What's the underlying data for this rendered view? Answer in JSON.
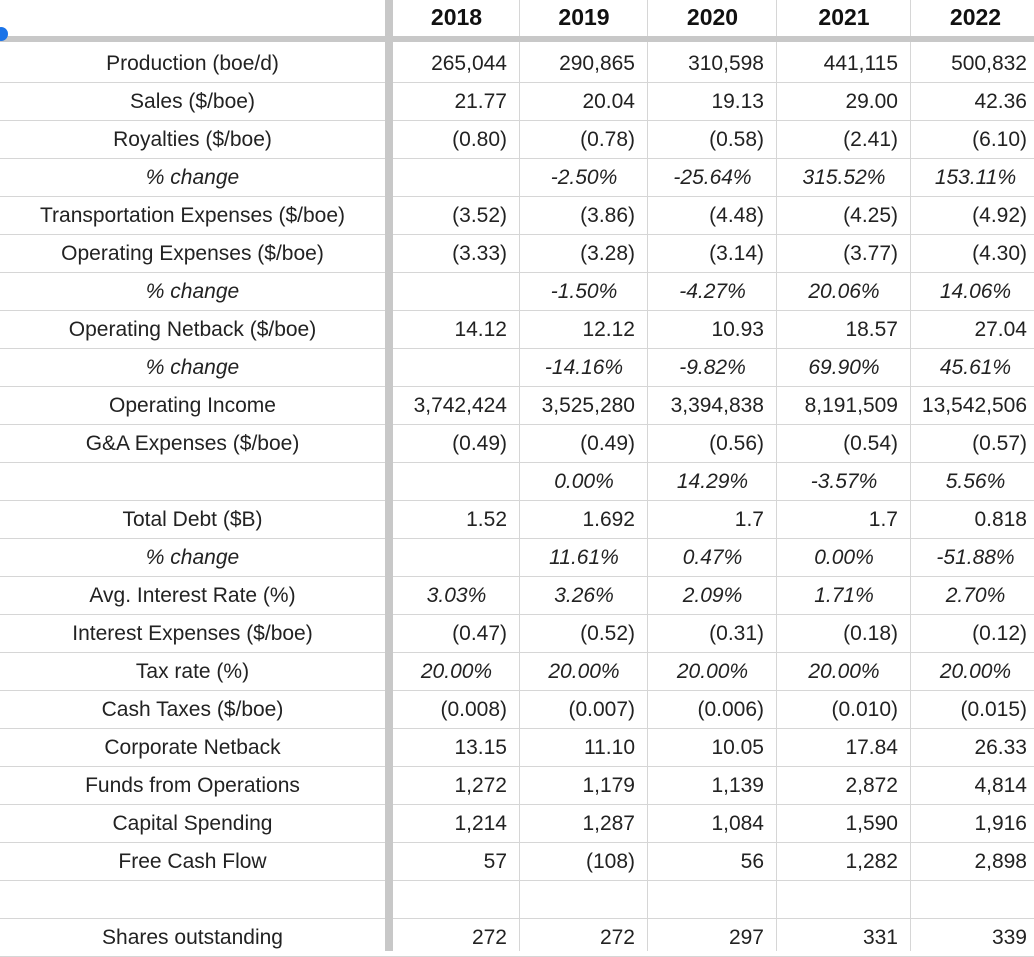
{
  "years": [
    "2018",
    "2019",
    "2020",
    "2021",
    "2022"
  ],
  "rows": [
    {
      "label": "Production (boe/d)",
      "italic": false,
      "kind": "num",
      "values": [
        "265,044",
        "290,865",
        "310,598",
        "441,115",
        "500,832"
      ]
    },
    {
      "label": "Sales ($/boe)",
      "italic": false,
      "kind": "num",
      "values": [
        "21.77",
        "20.04",
        "19.13",
        "29.00",
        "42.36"
      ]
    },
    {
      "label": "Royalties ($/boe)",
      "italic": false,
      "kind": "num",
      "values": [
        "(0.80)",
        "(0.78)",
        "(0.58)",
        "(2.41)",
        "(6.10)"
      ]
    },
    {
      "label": "% change",
      "italic": true,
      "kind": "pct",
      "values": [
        "",
        "-2.50%",
        "-25.64%",
        "315.52%",
        "153.11%"
      ]
    },
    {
      "label": "Transportation Expenses ($/boe)",
      "italic": false,
      "kind": "num",
      "values": [
        "(3.52)",
        "(3.86)",
        "(4.48)",
        "(4.25)",
        "(4.92)"
      ]
    },
    {
      "label": "Operating Expenses ($/boe)",
      "italic": false,
      "kind": "num",
      "values": [
        "(3.33)",
        "(3.28)",
        "(3.14)",
        "(3.77)",
        "(4.30)"
      ]
    },
    {
      "label": "% change",
      "italic": true,
      "kind": "pct",
      "values": [
        "",
        "-1.50%",
        "-4.27%",
        "20.06%",
        "14.06%"
      ]
    },
    {
      "label": "Operating Netback ($/boe)",
      "italic": false,
      "kind": "num",
      "values": [
        "14.12",
        "12.12",
        "10.93",
        "18.57",
        "27.04"
      ]
    },
    {
      "label": "% change",
      "italic": true,
      "kind": "pct",
      "values": [
        "",
        "-14.16%",
        "-9.82%",
        "69.90%",
        "45.61%"
      ]
    },
    {
      "label": "Operating Income",
      "italic": false,
      "kind": "num",
      "values": [
        "3,742,424",
        "3,525,280",
        "3,394,838",
        "8,191,509",
        "13,542,506"
      ]
    },
    {
      "label": "G&A Expenses ($/boe)",
      "italic": false,
      "kind": "num",
      "values": [
        "(0.49)",
        "(0.49)",
        "(0.56)",
        "(0.54)",
        "(0.57)"
      ]
    },
    {
      "label": "",
      "italic": true,
      "kind": "pct",
      "values": [
        "",
        "0.00%",
        "14.29%",
        "-3.57%",
        "5.56%"
      ]
    },
    {
      "label": "Total Debt ($B)",
      "italic": false,
      "kind": "num",
      "values": [
        "1.52",
        "1.692",
        "1.7",
        "1.7",
        "0.818"
      ]
    },
    {
      "label": "% change",
      "italic": true,
      "kind": "pct",
      "values": [
        "",
        "11.61%",
        "0.47%",
        "0.00%",
        "-51.88%"
      ]
    },
    {
      "label": "Avg. Interest Rate (%)",
      "italic": false,
      "kind": "pct",
      "values": [
        "3.03%",
        "3.26%",
        "2.09%",
        "1.71%",
        "2.70%"
      ]
    },
    {
      "label": "Interest Expenses ($/boe)",
      "italic": false,
      "kind": "num",
      "values": [
        "(0.47)",
        "(0.52)",
        "(0.31)",
        "(0.18)",
        "(0.12)"
      ]
    },
    {
      "label": "Tax rate (%)",
      "italic": false,
      "kind": "pct",
      "values": [
        "20.00%",
        "20.00%",
        "20.00%",
        "20.00%",
        "20.00%"
      ]
    },
    {
      "label": "Cash Taxes ($/boe)",
      "italic": false,
      "kind": "num",
      "values": [
        "(0.008)",
        "(0.007)",
        "(0.006)",
        "(0.010)",
        "(0.015)"
      ]
    },
    {
      "label": "Corporate Netback",
      "italic": false,
      "kind": "num",
      "values": [
        "13.15",
        "11.10",
        "10.05",
        "17.84",
        "26.33"
      ]
    },
    {
      "label": "Funds from Operations",
      "italic": false,
      "kind": "num",
      "values": [
        "1,272",
        "1,179",
        "1,139",
        "2,872",
        "4,814"
      ]
    },
    {
      "label": "Capital Spending",
      "italic": false,
      "kind": "num",
      "values": [
        "1,214",
        "1,287",
        "1,084",
        "1,590",
        "1,916"
      ]
    },
    {
      "label": "Free Cash Flow",
      "italic": false,
      "kind": "num",
      "values": [
        "57",
        "(108)",
        "56",
        "1,282",
        "2,898"
      ]
    },
    {
      "label": "",
      "italic": false,
      "kind": "num",
      "values": [
        "",
        "",
        "",
        "",
        ""
      ]
    },
    {
      "label": "Shares outstanding",
      "italic": false,
      "kind": "num",
      "values": [
        "272",
        "272",
        "297",
        "331",
        "339"
      ]
    }
  ]
}
